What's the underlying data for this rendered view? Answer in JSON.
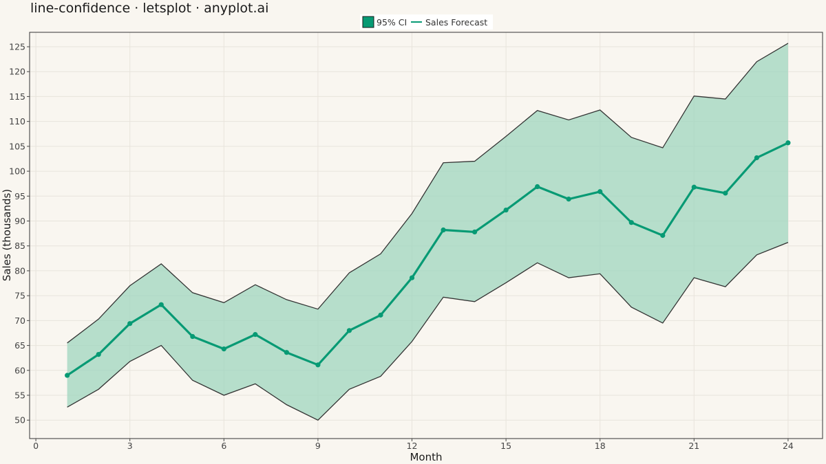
{
  "chart_data": {
    "type": "line",
    "title": "line-confidence · letsplot · anyplot.ai",
    "xlabel": "Month",
    "ylabel": "Sales (thousands)",
    "xlim": [
      -0.2,
      25.1
    ],
    "ylim": [
      46.3,
      127.9
    ],
    "x_ticks": [
      0,
      3,
      6,
      9,
      12,
      15,
      18,
      21,
      24
    ],
    "y_ticks": [
      50,
      55,
      60,
      65,
      70,
      75,
      80,
      85,
      90,
      95,
      100,
      105,
      110,
      115,
      120,
      125
    ],
    "grid": true,
    "legend": {
      "position": "top",
      "items": [
        {
          "label": "95% CI",
          "kind": "band"
        },
        {
          "label": "Sales Forecast",
          "kind": "line"
        }
      ]
    },
    "x": [
      1,
      2,
      3,
      4,
      5,
      6,
      7,
      8,
      9,
      10,
      11,
      12,
      13,
      14,
      15,
      16,
      17,
      18,
      19,
      20,
      21,
      22,
      23,
      24
    ],
    "series": [
      {
        "name": "Sales Forecast",
        "color": "#079A74",
        "values": [
          59.0,
          63.2,
          69.4,
          73.2,
          66.8,
          64.3,
          67.2,
          63.6,
          61.1,
          68.0,
          71.1,
          78.6,
          88.2,
          87.8,
          92.2,
          96.9,
          94.4,
          95.9,
          89.7,
          87.1,
          96.8,
          95.6,
          102.7,
          105.7
        ]
      }
    ],
    "band": {
      "name": "95% CI",
      "color": "#9FD6BF",
      "lower": [
        52.6,
        56.2,
        61.8,
        65.0,
        58.0,
        55.0,
        57.3,
        53.1,
        50.0,
        56.2,
        58.8,
        65.8,
        74.7,
        73.8,
        77.6,
        81.6,
        78.6,
        79.4,
        72.7,
        69.5,
        78.6,
        76.8,
        83.2,
        85.7
      ],
      "upper": [
        65.5,
        70.3,
        77.0,
        81.4,
        75.6,
        73.6,
        77.2,
        74.2,
        72.3,
        79.6,
        83.4,
        91.5,
        101.7,
        102.0,
        107.0,
        112.2,
        110.3,
        112.3,
        106.8,
        104.7,
        115.1,
        114.5,
        122.0,
        125.7
      ]
    }
  }
}
